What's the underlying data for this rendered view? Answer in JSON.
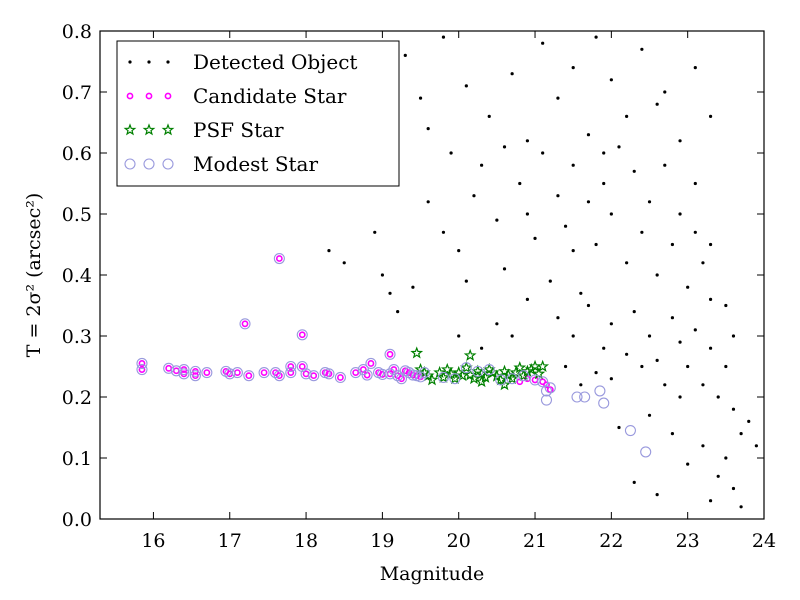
{
  "chart_data": {
    "type": "scatter",
    "title": "",
    "xlabel": "Magnitude",
    "ylabel": "T = 2σ² (arcsec²)",
    "xlim": [
      15.3,
      24
    ],
    "ylim": [
      0.0,
      0.8
    ],
    "xticks": [
      "16",
      "17",
      "18",
      "19",
      "20",
      "21",
      "22",
      "23",
      "24"
    ],
    "yticks": [
      "0.0",
      "0.1",
      "0.2",
      "0.3",
      "0.4",
      "0.5",
      "0.6",
      "0.7",
      "0.8"
    ],
    "grid": false,
    "legend_position": "top-left",
    "series": [
      {
        "name": "Detected Object",
        "marker": "dot",
        "color": "#000000",
        "sampled": true,
        "points": [
          [
            19.0,
            0.78
          ],
          [
            19.3,
            0.76
          ],
          [
            19.5,
            0.69
          ],
          [
            19.6,
            0.64
          ],
          [
            19.8,
            0.79
          ],
          [
            20.1,
            0.71
          ],
          [
            20.4,
            0.66
          ],
          [
            20.7,
            0.73
          ],
          [
            20.9,
            0.62
          ],
          [
            21.1,
            0.78
          ],
          [
            21.3,
            0.69
          ],
          [
            21.5,
            0.74
          ],
          [
            21.8,
            0.79
          ],
          [
            22.0,
            0.72
          ],
          [
            22.4,
            0.77
          ],
          [
            22.7,
            0.7
          ],
          [
            23.1,
            0.74
          ],
          [
            23.3,
            0.66
          ],
          [
            18.3,
            0.44
          ],
          [
            18.5,
            0.42
          ],
          [
            18.9,
            0.47
          ],
          [
            19.0,
            0.4
          ],
          [
            19.1,
            0.37
          ],
          [
            19.2,
            0.34
          ],
          [
            19.4,
            0.38
          ],
          [
            19.6,
            0.52
          ],
          [
            19.8,
            0.47
          ],
          [
            20.0,
            0.44
          ],
          [
            20.2,
            0.53
          ],
          [
            20.3,
            0.58
          ],
          [
            20.5,
            0.49
          ],
          [
            20.6,
            0.41
          ],
          [
            20.8,
            0.55
          ],
          [
            20.9,
            0.5
          ],
          [
            21.0,
            0.46
          ],
          [
            21.1,
            0.6
          ],
          [
            21.2,
            0.39
          ],
          [
            21.3,
            0.53
          ],
          [
            21.4,
            0.48
          ],
          [
            21.5,
            0.58
          ],
          [
            21.6,
            0.37
          ],
          [
            21.7,
            0.63
          ],
          [
            21.8,
            0.45
          ],
          [
            21.9,
            0.55
          ],
          [
            22.0,
            0.5
          ],
          [
            22.1,
            0.61
          ],
          [
            22.2,
            0.42
          ],
          [
            22.3,
            0.57
          ],
          [
            22.4,
            0.47
          ],
          [
            22.5,
            0.52
          ],
          [
            22.6,
            0.4
          ],
          [
            22.7,
            0.58
          ],
          [
            22.8,
            0.45
          ],
          [
            22.9,
            0.5
          ],
          [
            23.0,
            0.38
          ],
          [
            23.1,
            0.47
          ],
          [
            23.2,
            0.42
          ],
          [
            23.3,
            0.36
          ],
          [
            21.3,
            0.33
          ],
          [
            21.5,
            0.3
          ],
          [
            21.7,
            0.35
          ],
          [
            21.9,
            0.28
          ],
          [
            22.0,
            0.32
          ],
          [
            22.2,
            0.27
          ],
          [
            22.3,
            0.34
          ],
          [
            22.5,
            0.3
          ],
          [
            22.6,
            0.26
          ],
          [
            22.8,
            0.33
          ],
          [
            22.9,
            0.29
          ],
          [
            23.0,
            0.25
          ],
          [
            23.1,
            0.31
          ],
          [
            23.2,
            0.22
          ],
          [
            23.3,
            0.28
          ],
          [
            23.4,
            0.2
          ],
          [
            23.5,
            0.25
          ],
          [
            23.6,
            0.18
          ],
          [
            23.7,
            0.14
          ],
          [
            23.5,
            0.1
          ],
          [
            23.4,
            0.07
          ],
          [
            23.6,
            0.05
          ],
          [
            23.7,
            0.02
          ],
          [
            23.3,
            0.03
          ],
          [
            23.8,
            0.16
          ],
          [
            23.9,
            0.12
          ],
          [
            22.9,
            0.2
          ],
          [
            22.7,
            0.22
          ],
          [
            22.5,
            0.17
          ],
          [
            22.1,
            0.15
          ],
          [
            22.3,
            0.06
          ],
          [
            22.6,
            0.04
          ],
          [
            23.0,
            0.09
          ],
          [
            23.2,
            0.12
          ],
          [
            21.6,
            0.22
          ],
          [
            21.4,
            0.25
          ],
          [
            21.8,
            0.24
          ],
          [
            22.0,
            0.23
          ],
          [
            22.4,
            0.25
          ],
          [
            22.8,
            0.14
          ],
          [
            23.5,
            0.35
          ],
          [
            23.6,
            0.3
          ],
          [
            23.3,
            0.45
          ],
          [
            23.1,
            0.55
          ],
          [
            22.9,
            0.62
          ],
          [
            22.6,
            0.68
          ],
          [
            22.2,
            0.66
          ],
          [
            21.9,
            0.6
          ],
          [
            21.7,
            0.52
          ],
          [
            21.5,
            0.44
          ],
          [
            20.7,
            0.3
          ],
          [
            20.5,
            0.32
          ],
          [
            20.9,
            0.36
          ],
          [
            20.1,
            0.39
          ],
          [
            20.3,
            0.28
          ],
          [
            20.6,
            0.61
          ],
          [
            19.9,
            0.6
          ],
          [
            20.0,
            0.3
          ]
        ]
      },
      {
        "name": "Candidate Star",
        "marker": "circle",
        "color": "#ff00ff",
        "points": [
          [
            15.85,
            0.255
          ],
          [
            15.85,
            0.245
          ],
          [
            16.2,
            0.247
          ],
          [
            16.3,
            0.243
          ],
          [
            16.4,
            0.245
          ],
          [
            16.4,
            0.238
          ],
          [
            16.55,
            0.242
          ],
          [
            16.55,
            0.235
          ],
          [
            16.7,
            0.24
          ],
          [
            16.95,
            0.242
          ],
          [
            17.0,
            0.238
          ],
          [
            17.1,
            0.24
          ],
          [
            17.25,
            0.235
          ],
          [
            17.45,
            0.24
          ],
          [
            17.6,
            0.24
          ],
          [
            17.65,
            0.235
          ],
          [
            17.8,
            0.25
          ],
          [
            17.8,
            0.24
          ],
          [
            17.95,
            0.25
          ],
          [
            18.0,
            0.238
          ],
          [
            18.1,
            0.235
          ],
          [
            18.25,
            0.24
          ],
          [
            18.3,
            0.238
          ],
          [
            18.45,
            0.232
          ],
          [
            18.65,
            0.24
          ],
          [
            18.75,
            0.245
          ],
          [
            18.8,
            0.236
          ],
          [
            18.85,
            0.255
          ],
          [
            18.95,
            0.24
          ],
          [
            19.0,
            0.237
          ],
          [
            19.1,
            0.238
          ],
          [
            19.15,
            0.245
          ],
          [
            19.2,
            0.235
          ],
          [
            19.25,
            0.23
          ],
          [
            19.3,
            0.243
          ],
          [
            19.35,
            0.24
          ],
          [
            19.4,
            0.236
          ],
          [
            19.45,
            0.235
          ],
          [
            19.5,
            0.233
          ],
          [
            19.1,
            0.27
          ],
          [
            17.2,
            0.32
          ],
          [
            17.65,
            0.427
          ],
          [
            17.95,
            0.302
          ],
          [
            20.8,
            0.225
          ],
          [
            20.9,
            0.23
          ],
          [
            21.0,
            0.228
          ],
          [
            21.1,
            0.225
          ],
          [
            21.15,
            0.22
          ],
          [
            21.2,
            0.212
          ]
        ]
      },
      {
        "name": "PSF Star",
        "marker": "star",
        "color": "#008000",
        "points": [
          [
            19.45,
            0.272
          ],
          [
            19.5,
            0.245
          ],
          [
            19.55,
            0.24
          ],
          [
            19.6,
            0.235
          ],
          [
            19.65,
            0.228
          ],
          [
            19.75,
            0.24
          ],
          [
            19.8,
            0.232
          ],
          [
            19.85,
            0.245
          ],
          [
            19.9,
            0.238
          ],
          [
            19.95,
            0.23
          ],
          [
            20.0,
            0.24
          ],
          [
            20.05,
            0.235
          ],
          [
            20.1,
            0.248
          ],
          [
            20.15,
            0.236
          ],
          [
            20.15,
            0.268
          ],
          [
            20.2,
            0.23
          ],
          [
            20.25,
            0.242
          ],
          [
            20.3,
            0.238
          ],
          [
            20.35,
            0.232
          ],
          [
            20.4,
            0.245
          ],
          [
            20.45,
            0.24
          ],
          [
            20.5,
            0.234
          ],
          [
            20.55,
            0.228
          ],
          [
            20.6,
            0.242
          ],
          [
            20.65,
            0.236
          ],
          [
            20.7,
            0.23
          ],
          [
            20.75,
            0.24
          ],
          [
            20.8,
            0.248
          ],
          [
            20.85,
            0.235
          ],
          [
            20.9,
            0.242
          ],
          [
            20.95,
            0.245
          ],
          [
            21.0,
            0.25
          ],
          [
            21.05,
            0.238
          ],
          [
            21.1,
            0.25
          ],
          [
            20.6,
            0.22
          ],
          [
            20.3,
            0.225
          ]
        ]
      },
      {
        "name": "Modest Star",
        "marker": "open-circle",
        "color": "#9999dd",
        "points": [
          [
            15.85,
            0.255
          ],
          [
            15.85,
            0.245
          ],
          [
            16.2,
            0.247
          ],
          [
            16.3,
            0.243
          ],
          [
            16.4,
            0.245
          ],
          [
            16.4,
            0.238
          ],
          [
            16.55,
            0.242
          ],
          [
            16.55,
            0.235
          ],
          [
            16.7,
            0.24
          ],
          [
            16.95,
            0.242
          ],
          [
            17.0,
            0.238
          ],
          [
            17.1,
            0.24
          ],
          [
            17.25,
            0.235
          ],
          [
            17.45,
            0.24
          ],
          [
            17.6,
            0.24
          ],
          [
            17.65,
            0.235
          ],
          [
            17.8,
            0.25
          ],
          [
            17.8,
            0.24
          ],
          [
            17.95,
            0.25
          ],
          [
            18.0,
            0.238
          ],
          [
            18.1,
            0.235
          ],
          [
            18.25,
            0.24
          ],
          [
            18.3,
            0.238
          ],
          [
            18.45,
            0.232
          ],
          [
            18.65,
            0.24
          ],
          [
            18.75,
            0.245
          ],
          [
            18.8,
            0.236
          ],
          [
            18.85,
            0.255
          ],
          [
            18.95,
            0.24
          ],
          [
            19.0,
            0.237
          ],
          [
            19.1,
            0.238
          ],
          [
            19.15,
            0.245
          ],
          [
            19.2,
            0.235
          ],
          [
            19.25,
            0.23
          ],
          [
            19.3,
            0.243
          ],
          [
            19.35,
            0.24
          ],
          [
            19.4,
            0.236
          ],
          [
            19.45,
            0.235
          ],
          [
            19.5,
            0.233
          ],
          [
            19.1,
            0.27
          ],
          [
            17.2,
            0.32
          ],
          [
            17.65,
            0.427
          ],
          [
            17.95,
            0.302
          ],
          [
            19.55,
            0.24
          ],
          [
            19.8,
            0.232
          ],
          [
            19.95,
            0.23
          ],
          [
            20.1,
            0.248
          ],
          [
            20.25,
            0.242
          ],
          [
            20.4,
            0.245
          ],
          [
            20.55,
            0.228
          ],
          [
            20.7,
            0.23
          ],
          [
            20.85,
            0.235
          ],
          [
            21.0,
            0.228
          ],
          [
            21.1,
            0.225
          ],
          [
            21.15,
            0.21
          ],
          [
            21.15,
            0.195
          ],
          [
            21.2,
            0.215
          ],
          [
            21.55,
            0.2
          ],
          [
            21.65,
            0.2
          ],
          [
            21.9,
            0.19
          ],
          [
            21.85,
            0.21
          ],
          [
            22.25,
            0.145
          ],
          [
            22.45,
            0.11
          ]
        ]
      }
    ]
  }
}
